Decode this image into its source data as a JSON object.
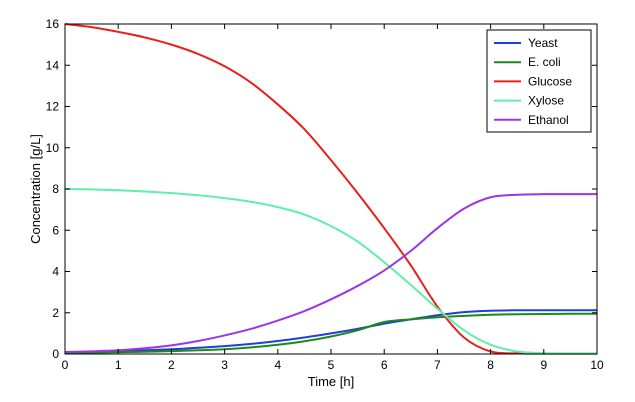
{
  "chart_data": {
    "type": "line",
    "title": "",
    "xlabel": "Time [h]",
    "ylabel": "Concentration [g/L]",
    "xlim": [
      0,
      10
    ],
    "ylim": [
      0,
      16
    ],
    "xticks": [
      0,
      1,
      2,
      3,
      4,
      5,
      6,
      7,
      8,
      9,
      10
    ],
    "yticks": [
      0,
      2,
      4,
      6,
      8,
      10,
      12,
      14,
      16
    ],
    "grid": false,
    "legend_position": "top-right",
    "x": [
      0,
      0.5,
      1,
      1.5,
      2,
      2.5,
      3,
      3.5,
      4,
      4.5,
      5,
      5.5,
      6,
      6.5,
      7,
      7.5,
      8,
      8.5,
      9,
      9.5,
      10
    ],
    "series": [
      {
        "name": "Yeast",
        "color": "#1f3fd6",
        "values": [
          0.08,
          0.11,
          0.14,
          0.18,
          0.23,
          0.3,
          0.38,
          0.49,
          0.63,
          0.8,
          1.0,
          1.22,
          1.47,
          1.68,
          1.88,
          2.03,
          2.1,
          2.12,
          2.12,
          2.12,
          2.12
        ]
      },
      {
        "name": "E. coli",
        "color": "#1a8a1a",
        "values": [
          0.05,
          0.07,
          0.09,
          0.11,
          0.14,
          0.18,
          0.23,
          0.32,
          0.45,
          0.62,
          0.85,
          1.15,
          1.55,
          1.68,
          1.78,
          1.85,
          1.9,
          1.93,
          1.94,
          1.95,
          1.95
        ]
      },
      {
        "name": "Glucose",
        "color": "#e8201a",
        "values": [
          16.0,
          15.85,
          15.62,
          15.35,
          15.0,
          14.55,
          13.95,
          13.15,
          12.1,
          10.9,
          9.4,
          7.8,
          6.1,
          4.3,
          2.3,
          0.8,
          0.12,
          0.03,
          0.02,
          0.02,
          0.02
        ]
      },
      {
        "name": "Xylose",
        "color": "#5ef0a8",
        "values": [
          8.0,
          7.98,
          7.94,
          7.88,
          7.8,
          7.7,
          7.56,
          7.38,
          7.12,
          6.76,
          6.2,
          5.45,
          4.45,
          3.35,
          2.2,
          1.15,
          0.45,
          0.12,
          0.04,
          0.03,
          0.03
        ]
      },
      {
        "name": "Ethanol",
        "color": "#9b36e8",
        "values": [
          0.1,
          0.13,
          0.18,
          0.28,
          0.42,
          0.63,
          0.9,
          1.22,
          1.62,
          2.08,
          2.65,
          3.3,
          4.05,
          5.0,
          6.1,
          7.05,
          7.6,
          7.72,
          7.75,
          7.75,
          7.75
        ]
      }
    ]
  }
}
